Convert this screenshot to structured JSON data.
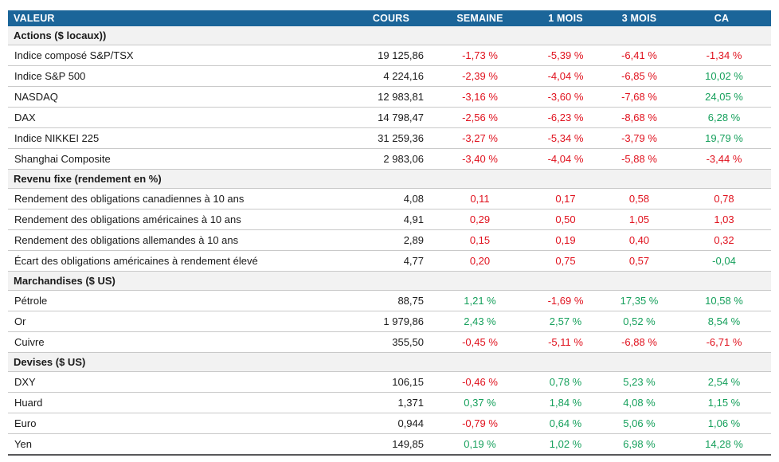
{
  "chart_data": {
    "type": "table",
    "columns": [
      "VALEUR",
      "COURS",
      "SEMAINE",
      "1 MOIS",
      "3 MOIS",
      "CA"
    ],
    "sections": [
      {
        "title": "Actions ($ locaux))",
        "rows": [
          {
            "label": "Indice composé S&P/TSX",
            "cours": "19 125,86",
            "changes": [
              {
                "v": "-1,73 %",
                "c": "neg"
              },
              {
                "v": "-5,39 %",
                "c": "neg"
              },
              {
                "v": "-6,41 %",
                "c": "neg"
              },
              {
                "v": "-1,34 %",
                "c": "neg"
              }
            ]
          },
          {
            "label": "Indice S&P 500",
            "cours": "4 224,16",
            "changes": [
              {
                "v": "-2,39 %",
                "c": "neg"
              },
              {
                "v": "-4,04 %",
                "c": "neg"
              },
              {
                "v": "-6,85 %",
                "c": "neg"
              },
              {
                "v": "10,02 %",
                "c": "pos"
              }
            ]
          },
          {
            "label": "NASDAQ",
            "cours": "12 983,81",
            "changes": [
              {
                "v": "-3,16 %",
                "c": "neg"
              },
              {
                "v": "-3,60 %",
                "c": "neg"
              },
              {
                "v": "-7,68 %",
                "c": "neg"
              },
              {
                "v": "24,05 %",
                "c": "pos"
              }
            ]
          },
          {
            "label": "DAX",
            "cours": "14 798,47",
            "changes": [
              {
                "v": "-2,56 %",
                "c": "neg"
              },
              {
                "v": "-6,23 %",
                "c": "neg"
              },
              {
                "v": "-8,68 %",
                "c": "neg"
              },
              {
                "v": "6,28 %",
                "c": "pos"
              }
            ]
          },
          {
            "label": "Indice NIKKEI 225",
            "cours": "31 259,36",
            "changes": [
              {
                "v": "-3,27 %",
                "c": "neg"
              },
              {
                "v": "-5,34 %",
                "c": "neg"
              },
              {
                "v": "-3,79 %",
                "c": "neg"
              },
              {
                "v": "19,79 %",
                "c": "pos"
              }
            ]
          },
          {
            "label": "Shanghai Composite",
            "cours": "2 983,06",
            "changes": [
              {
                "v": "-3,40 %",
                "c": "neg"
              },
              {
                "v": "-4,04 %",
                "c": "neg"
              },
              {
                "v": "-5,88 %",
                "c": "neg"
              },
              {
                "v": "-3,44 %",
                "c": "neg"
              }
            ]
          }
        ]
      },
      {
        "title": "Revenu fixe (rendement en %)",
        "rows": [
          {
            "label": "Rendement des obligations canadiennes à 10 ans",
            "cours": "4,08",
            "changes": [
              {
                "v": "0,11",
                "c": "neg"
              },
              {
                "v": "0,17",
                "c": "neg"
              },
              {
                "v": "0,58",
                "c": "neg"
              },
              {
                "v": "0,78",
                "c": "neg"
              }
            ]
          },
          {
            "label": "Rendement des obligations américaines à 10 ans",
            "cours": "4,91",
            "changes": [
              {
                "v": "0,29",
                "c": "neg"
              },
              {
                "v": "0,50",
                "c": "neg"
              },
              {
                "v": "1,05",
                "c": "neg"
              },
              {
                "v": "1,03",
                "c": "neg"
              }
            ]
          },
          {
            "label": "Rendement des obligations allemandes à 10 ans",
            "cours": "2,89",
            "changes": [
              {
                "v": "0,15",
                "c": "neg"
              },
              {
                "v": "0,19",
                "c": "neg"
              },
              {
                "v": "0,40",
                "c": "neg"
              },
              {
                "v": "0,32",
                "c": "neg"
              }
            ]
          },
          {
            "label": "Écart des obligations américaines à rendement élevé",
            "cours": "4,77",
            "changes": [
              {
                "v": "0,20",
                "c": "neg"
              },
              {
                "v": "0,75",
                "c": "neg"
              },
              {
                "v": "0,57",
                "c": "neg"
              },
              {
                "v": "-0,04",
                "c": "pos"
              }
            ]
          }
        ]
      },
      {
        "title": "Marchandises ($ US)",
        "rows": [
          {
            "label": "Pétrole",
            "cours": "88,75",
            "changes": [
              {
                "v": "1,21 %",
                "c": "pos"
              },
              {
                "v": "-1,69 %",
                "c": "neg"
              },
              {
                "v": "17,35 %",
                "c": "pos"
              },
              {
                "v": "10,58 %",
                "c": "pos"
              }
            ]
          },
          {
            "label": "Or",
            "cours": "1 979,86",
            "changes": [
              {
                "v": "2,43 %",
                "c": "pos"
              },
              {
                "v": "2,57 %",
                "c": "pos"
              },
              {
                "v": "0,52 %",
                "c": "pos"
              },
              {
                "v": "8,54 %",
                "c": "pos"
              }
            ]
          },
          {
            "label": "Cuivre",
            "cours": "355,50",
            "changes": [
              {
                "v": "-0,45 %",
                "c": "neg"
              },
              {
                "v": "-5,11 %",
                "c": "neg"
              },
              {
                "v": "-6,88 %",
                "c": "neg"
              },
              {
                "v": "-6,71 %",
                "c": "neg"
              }
            ]
          }
        ]
      },
      {
        "title": "Devises ($ US)",
        "rows": [
          {
            "label": "DXY",
            "cours": "106,15",
            "changes": [
              {
                "v": "-0,46 %",
                "c": "neg"
              },
              {
                "v": "0,78 %",
                "c": "pos"
              },
              {
                "v": "5,23 %",
                "c": "pos"
              },
              {
                "v": "2,54 %",
                "c": "pos"
              }
            ]
          },
          {
            "label": "Huard",
            "cours": "1,371",
            "changes": [
              {
                "v": "0,37 %",
                "c": "pos"
              },
              {
                "v": "1,84 %",
                "c": "pos"
              },
              {
                "v": "4,08 %",
                "c": "pos"
              },
              {
                "v": "1,15 %",
                "c": "pos"
              }
            ]
          },
          {
            "label": "Euro",
            "cours": "0,944",
            "changes": [
              {
                "v": "-0,79 %",
                "c": "neg"
              },
              {
                "v": "0,64 %",
                "c": "pos"
              },
              {
                "v": "5,06 %",
                "c": "pos"
              },
              {
                "v": "1,06 %",
                "c": "pos"
              }
            ]
          },
          {
            "label": "Yen",
            "cours": "149,85",
            "changes": [
              {
                "v": "0,19 %",
                "c": "pos"
              },
              {
                "v": "1,02 %",
                "c": "pos"
              },
              {
                "v": "6,98 %",
                "c": "pos"
              },
              {
                "v": "14,28 %",
                "c": "pos"
              }
            ]
          }
        ]
      }
    ]
  },
  "colors": {
    "header_bg": "#1b6599",
    "header_text": "#ffffff",
    "positive": "#16a05c",
    "negative": "#e0121e",
    "section_bg": "#f2f2f2",
    "row_border": "#c9c9c9",
    "bottom_border": "#58585a",
    "text": "#1a1a1a"
  }
}
